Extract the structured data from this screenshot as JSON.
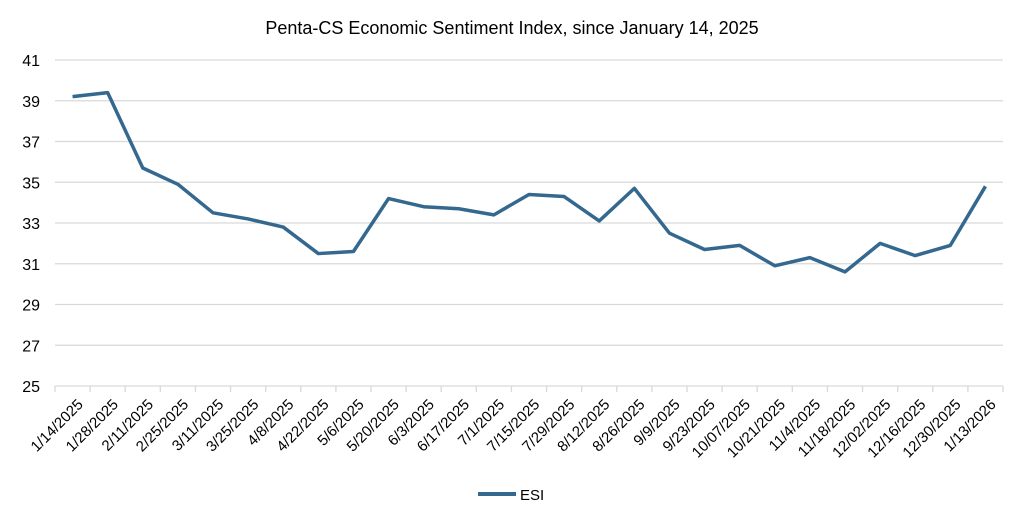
{
  "chart_data": {
    "type": "line",
    "title": "Penta-CS Economic Sentiment Index, since January 14, 2025",
    "xlabel": "",
    "ylabel": "",
    "ylim": [
      25,
      41
    ],
    "yticks": [
      25,
      27,
      29,
      31,
      33,
      35,
      37,
      39,
      41
    ],
    "grid": true,
    "legend_position": "bottom",
    "categories": [
      "1/14/2025",
      "1/28/2025",
      "2/11/2025",
      "2/25/2025",
      "3/11/2025",
      "3/25/2025",
      "4/8/2025",
      "4/22/2025",
      "5/6/2025",
      "5/20/2025",
      "6/3/2025",
      "6/17/2025",
      "7/1/2025",
      "7/15/2025",
      "7/29/2025",
      "8/12/2025",
      "8/26/2025",
      "9/9/2025",
      "9/23/2025",
      "10/07/2025",
      "10/21/2025",
      "11/4/2025",
      "11/18/2025",
      "12/02/2025",
      "12/16/2025",
      "12/30/2025",
      "1/13/2026"
    ],
    "series": [
      {
        "name": "ESI",
        "color": "#34688F",
        "values": [
          39.2,
          39.4,
          35.7,
          34.9,
          33.5,
          33.2,
          32.8,
          31.5,
          31.6,
          34.2,
          33.8,
          33.7,
          33.4,
          34.4,
          34.3,
          33.1,
          34.7,
          32.5,
          31.7,
          31.9,
          30.9,
          31.3,
          30.6,
          32.0,
          31.4,
          31.9,
          34.8
        ]
      }
    ]
  }
}
